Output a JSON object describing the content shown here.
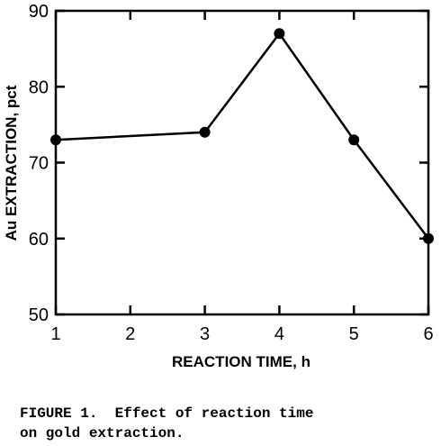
{
  "chart_data": {
    "type": "line",
    "x": [
      1,
      3,
      4,
      5,
      6
    ],
    "y": [
      73,
      74,
      87,
      73,
      60
    ],
    "xlabel": "REACTION TIME, h",
    "ylabel": "Au EXTRACTION, pct",
    "xlim": [
      1,
      6
    ],
    "ylim": [
      50,
      90
    ],
    "xticks": [
      "1",
      "2",
      "3",
      "4",
      "5",
      "6"
    ],
    "yticks": [
      "50",
      "60",
      "70",
      "80",
      "90"
    ],
    "grid": false,
    "line_color": "#000000",
    "marker": "filled-circle"
  },
  "caption": "FIGURE 1.  Effect of reaction time\non gold extraction."
}
